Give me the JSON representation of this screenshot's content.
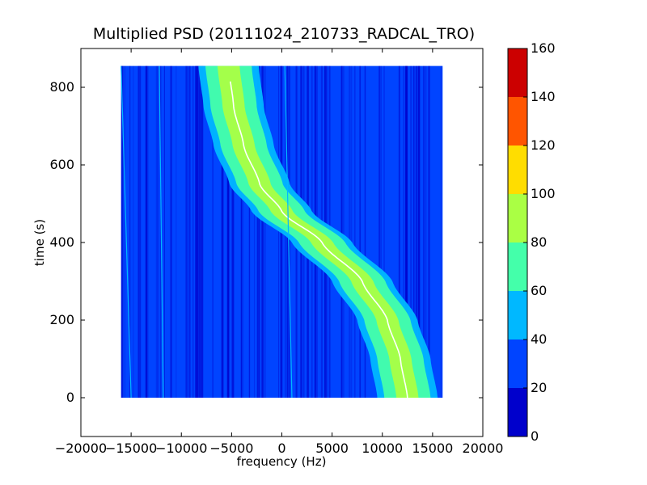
{
  "chart_data": {
    "type": "heatmap",
    "title": "Multiplied PSD (20111024_210733_RADCAL_TRO)",
    "xlabel": "frequency (Hz)",
    "ylabel": "time (s)",
    "xlim": [
      -20000,
      20000
    ],
    "ylim": [
      -100,
      900
    ],
    "x_ticks": [
      -20000,
      -15000,
      -10000,
      -5000,
      0,
      5000,
      10000,
      15000,
      20000
    ],
    "x_tick_labels": [
      "−20000",
      "−15000",
      "−10000",
      "−5000",
      "0",
      "5000",
      "10000",
      "15000",
      "20000"
    ],
    "y_ticks": [
      0,
      200,
      400,
      600,
      800
    ],
    "y_tick_labels": [
      "0",
      "200",
      "400",
      "600",
      "800"
    ],
    "data_extent": {
      "x": [
        -16000,
        16000
      ],
      "y": [
        0,
        855
      ]
    },
    "background_level": 25,
    "colorbar": {
      "levels": [
        0,
        20,
        40,
        60,
        80,
        100,
        120,
        140,
        160
      ],
      "tick_labels": [
        "0",
        "20",
        "40",
        "60",
        "80",
        "100",
        "120",
        "140",
        "160"
      ],
      "colors": [
        "#0000cc",
        "#0044ff",
        "#00b8ff",
        "#44ffaa",
        "#aaff44",
        "#ffdd00",
        "#ff5500",
        "#cc0000"
      ]
    },
    "drift_track": {
      "description_values": "center frequency (Hz) vs time (s) of the high-power band",
      "points": [
        {
          "t": 0,
          "f": 12500
        },
        {
          "t": 100,
          "f": 11800
        },
        {
          "t": 200,
          "f": 10500
        },
        {
          "t": 300,
          "f": 8000
        },
        {
          "t": 400,
          "f": 4000
        },
        {
          "t": 480,
          "f": 0
        },
        {
          "t": 550,
          "f": -2200
        },
        {
          "t": 650,
          "f": -3800
        },
        {
          "t": 750,
          "f": -4800
        },
        {
          "t": 855,
          "f": -5300
        }
      ],
      "peak_level": 80,
      "band_level": 60
    },
    "carrier_lines_hz_at_t0": [
      -15000,
      -11800,
      1000
    ],
    "carrier_lines_hz_at_tmax": [
      -16000,
      -12200,
      300
    ]
  }
}
